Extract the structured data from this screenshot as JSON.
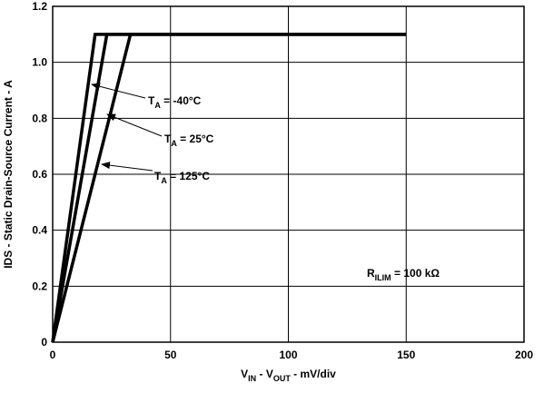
{
  "chart_data": {
    "type": "line",
    "x_label": [
      "V",
      "IN",
      " - V",
      "OUT",
      " - mV/div"
    ],
    "y_label": "IDS - Static Drain-Source Current - A",
    "annotation": [
      "R",
      "ILIM",
      " = 100 kΩ"
    ],
    "series": [
      {
        "name": [
          "T",
          "A",
          " = -40°C"
        ],
        "color": "#000000",
        "x": [
          0,
          18,
          150
        ],
        "values": [
          0,
          1.1,
          1.1
        ]
      },
      {
        "name": [
          "T",
          "A",
          " = 25°C"
        ],
        "color": "#000000",
        "x": [
          0,
          23,
          150
        ],
        "values": [
          0,
          1.1,
          1.1
        ]
      },
      {
        "name": [
          "T",
          "A",
          " = 125°C"
        ],
        "color": "#000000",
        "x": [
          0,
          33,
          150
        ],
        "values": [
          0,
          1.1,
          1.1
        ]
      }
    ],
    "xlim": [
      0,
      200
    ],
    "xticks": [
      0,
      50,
      100,
      150,
      200
    ],
    "ylim": [
      0,
      1.2
    ],
    "yticks": [
      0,
      0.2,
      0.4,
      0.6,
      0.8,
      {
        "value": 1,
        "label": "1.0"
      },
      1.2
    ],
    "grid": true
  }
}
